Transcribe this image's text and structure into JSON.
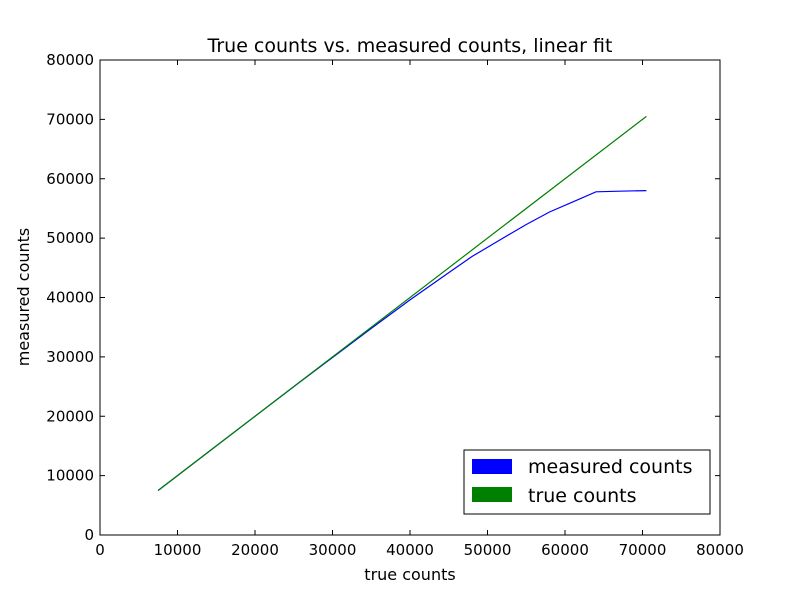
{
  "chart_data": {
    "type": "line",
    "title": "True counts vs. measured counts, linear fit",
    "xlabel": "true counts",
    "ylabel": "measured counts",
    "xlim": [
      0,
      80000
    ],
    "ylim": [
      0,
      80000
    ],
    "xticks": [
      0,
      10000,
      20000,
      30000,
      40000,
      50000,
      60000,
      70000,
      80000
    ],
    "yticks": [
      0,
      10000,
      20000,
      30000,
      40000,
      50000,
      60000,
      70000,
      80000
    ],
    "xtick_labels": [
      "0",
      "10000",
      "20000",
      "30000",
      "40000",
      "50000",
      "60000",
      "70000",
      "80000"
    ],
    "ytick_labels": [
      "0",
      "10000",
      "20000",
      "30000",
      "40000",
      "50000",
      "60000",
      "70000",
      "80000"
    ],
    "grid": false,
    "legend_position": "bottom-right",
    "series": [
      {
        "name": "measured counts",
        "color": "#0000ff",
        "x": [
          7500,
          10000,
          15000,
          20000,
          25000,
          30000,
          35000,
          40000,
          45000,
          48000,
          52000,
          55000,
          58000,
          61000,
          64000,
          67000,
          70500
        ],
        "y": [
          7500,
          10000,
          15000,
          20000,
          25000,
          29900,
          34800,
          39600,
          44200,
          46900,
          50000,
          52300,
          54400,
          56100,
          57800,
          57900,
          58000
        ]
      },
      {
        "name": "true counts",
        "color": "#008000",
        "x": [
          7500,
          70500
        ],
        "y": [
          7500,
          70500
        ]
      }
    ]
  }
}
